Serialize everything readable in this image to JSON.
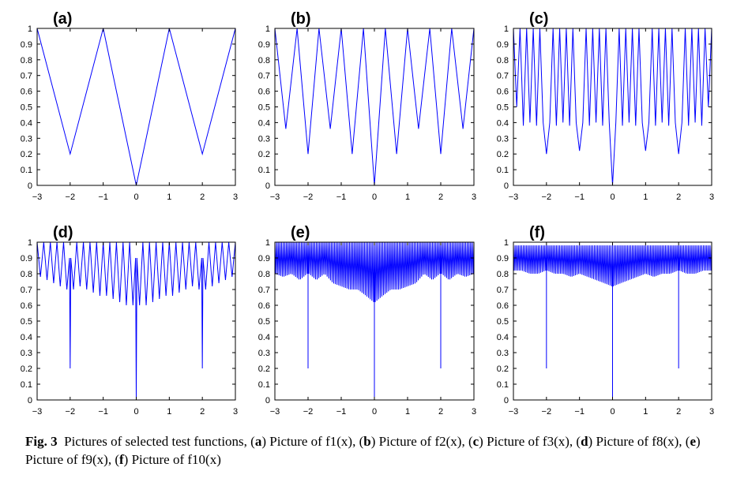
{
  "chart_data": [
    {
      "type": "line",
      "panel_label": "(a)",
      "func": "f1",
      "x": [
        -3,
        -2,
        -1,
        0,
        1,
        2,
        3
      ],
      "y": [
        1,
        0.2,
        1,
        0,
        1,
        0.2,
        1
      ],
      "xlim": [
        -3,
        3
      ],
      "ylim": [
        0,
        1
      ],
      "xticks": [
        "-3",
        "-2",
        "-1",
        "0",
        "1",
        "2",
        "3"
      ],
      "yticks": [
        "0",
        "0.1",
        "0.2",
        "0.3",
        "0.4",
        "0.5",
        "0.6",
        "0.7",
        "0.8",
        "0.9",
        "1"
      ],
      "color": "#0000ff",
      "grid": false
    },
    {
      "type": "line",
      "panel_label": "(b)",
      "func": "f2",
      "x": [
        -3,
        -2.67,
        -2.33,
        -2,
        -1.67,
        -1.33,
        -1,
        -0.67,
        -0.33,
        0,
        0.33,
        0.67,
        1,
        1.33,
        1.67,
        2,
        2.33,
        2.67,
        3
      ],
      "y": [
        1,
        0.36,
        1,
        0.2,
        1,
        0.36,
        1,
        0.2,
        1,
        0,
        1,
        0.2,
        1,
        0.36,
        1,
        0.2,
        1,
        0.36,
        1
      ],
      "xlim": [
        -3,
        3
      ],
      "ylim": [
        0,
        1
      ],
      "xticks": [
        "-3",
        "-2",
        "-1",
        "0",
        "1",
        "2",
        "3"
      ],
      "yticks": [
        "0",
        "0.1",
        "0.2",
        "0.3",
        "0.4",
        "0.5",
        "0.6",
        "0.7",
        "0.8",
        "0.9",
        "1"
      ],
      "color": "#0000ff",
      "grid": false
    },
    {
      "type": "line",
      "panel_label": "(c)",
      "func": "f3",
      "x": [
        -3,
        -2.9,
        -2.8,
        -2.7,
        -2.6,
        -2.5,
        -2.4,
        -2.3,
        -2.2,
        -2.1,
        -2,
        -1.9,
        -1.8,
        -1.7,
        -1.6,
        -1.5,
        -1.4,
        -1.3,
        -1.2,
        -1.1,
        -1,
        -0.9,
        -0.8,
        -0.7,
        -0.6,
        -0.5,
        -0.4,
        -0.3,
        -0.2,
        -0.1,
        0,
        0.1,
        0.2,
        0.3,
        0.4,
        0.5,
        0.6,
        0.7,
        0.8,
        0.9,
        1,
        1.1,
        1.2,
        1.3,
        1.4,
        1.5,
        1.6,
        1.7,
        1.8,
        1.9,
        2,
        2.1,
        2.2,
        2.3,
        2.4,
        2.5,
        2.6,
        2.7,
        2.8,
        2.9,
        3
      ],
      "y": [
        1,
        0.5,
        1,
        0.38,
        1,
        0.4,
        1,
        0.38,
        1,
        0.4,
        0.2,
        0.4,
        1,
        0.38,
        1,
        0.4,
        1,
        0.38,
        1,
        0.4,
        0.22,
        0.4,
        1,
        0.38,
        1,
        0.4,
        1,
        0.38,
        1,
        0.4,
        0,
        0.4,
        1,
        0.38,
        1,
        0.4,
        1,
        0.38,
        1,
        0.4,
        0.22,
        0.4,
        1,
        0.38,
        1,
        0.4,
        1,
        0.38,
        1,
        0.4,
        0.2,
        0.4,
        1,
        0.38,
        1,
        0.4,
        1,
        0.38,
        1,
        0.5,
        1
      ],
      "xlim": [
        -3,
        3
      ],
      "ylim": [
        0,
        1
      ],
      "xticks": [
        "-3",
        "-2",
        "-1",
        "0",
        "1",
        "2",
        "3"
      ],
      "yticks": [
        "0",
        "0.1",
        "0.2",
        "0.3",
        "0.4",
        "0.5",
        "0.6",
        "0.7",
        "0.8",
        "0.9",
        "1"
      ],
      "color": "#0000ff",
      "grid": false
    },
    {
      "type": "line",
      "panel_label": "(d)",
      "func": "f8",
      "x": [
        -3,
        -2.9,
        -2.8,
        -2.7,
        -2.6,
        -2.5,
        -2.4,
        -2.3,
        -2.2,
        -2.1,
        -2.02,
        -2,
        -1.98,
        -1.9,
        -1.8,
        -1.7,
        -1.6,
        -1.5,
        -1.4,
        -1.3,
        -1.2,
        -1.1,
        -1,
        -0.9,
        -0.8,
        -0.7,
        -0.6,
        -0.5,
        -0.4,
        -0.3,
        -0.2,
        -0.1,
        -0.02,
        0,
        0.02,
        0.1,
        0.2,
        0.3,
        0.4,
        0.5,
        0.6,
        0.7,
        0.8,
        0.9,
        1,
        1.1,
        1.2,
        1.3,
        1.4,
        1.5,
        1.6,
        1.7,
        1.8,
        1.9,
        1.98,
        2,
        2.02,
        2.1,
        2.2,
        2.3,
        2.4,
        2.5,
        2.6,
        2.7,
        2.8,
        2.9,
        3
      ],
      "y": [
        1,
        0.78,
        1,
        0.76,
        1,
        0.74,
        1,
        0.72,
        1,
        0.7,
        0.9,
        0.2,
        0.9,
        0.7,
        1,
        0.72,
        1,
        0.7,
        1,
        0.68,
        1,
        0.66,
        1,
        0.66,
        1,
        0.64,
        1,
        0.62,
        1,
        0.6,
        1,
        0.6,
        0.9,
        0,
        0.9,
        0.6,
        1,
        0.6,
        1,
        0.62,
        1,
        0.64,
        1,
        0.66,
        1,
        0.66,
        1,
        0.68,
        1,
        0.7,
        1,
        0.72,
        1,
        0.7,
        0.9,
        0.2,
        0.9,
        0.7,
        1,
        0.72,
        1,
        0.74,
        1,
        0.76,
        1,
        0.78,
        1
      ],
      "xlim": [
        -3,
        3
      ],
      "ylim": [
        0,
        1
      ],
      "xticks": [
        "-3",
        "-2",
        "-1",
        "0",
        "1",
        "2",
        "3"
      ],
      "yticks": [
        "0",
        "0.1",
        "0.2",
        "0.3",
        "0.4",
        "0.5",
        "0.6",
        "0.7",
        "0.8",
        "0.9",
        "1"
      ],
      "color": "#0000ff",
      "grid": false
    },
    {
      "type": "line",
      "panel_label": "(e)",
      "func": "f9",
      "x": [
        -3,
        -2.75,
        -2.5,
        -2.25,
        -2.02,
        -2,
        -1.98,
        -1.75,
        -1.5,
        -1.25,
        -1,
        -0.75,
        -0.5,
        -0.25,
        -0.02,
        0,
        0.02,
        0.25,
        0.5,
        0.75,
        1,
        1.25,
        1.5,
        1.75,
        1.98,
        2,
        2.02,
        2.25,
        2.5,
        2.75,
        3
      ],
      "y": [
        0.8,
        0.78,
        0.8,
        0.76,
        0.8,
        0.2,
        0.8,
        0.76,
        0.8,
        0.74,
        0.72,
        0.7,
        0.7,
        0.66,
        0.62,
        0,
        0.62,
        0.66,
        0.7,
        0.7,
        0.72,
        0.74,
        0.8,
        0.76,
        0.8,
        0.2,
        0.8,
        0.76,
        0.8,
        0.78,
        0.8
      ],
      "y_upper": [
        1,
        1,
        1,
        1,
        1,
        1,
        1,
        1,
        1,
        1,
        1,
        1,
        1,
        1,
        1,
        1,
        1,
        1,
        1,
        1,
        1,
        1,
        1,
        1,
        1,
        1,
        1,
        1,
        1,
        1,
        1
      ],
      "xlim": [
        -3,
        3
      ],
      "ylim": [
        0,
        1
      ],
      "xticks": [
        "-3",
        "-2",
        "-1",
        "0",
        "1",
        "2",
        "3"
      ],
      "yticks": [
        "0",
        "0.1",
        "0.2",
        "0.3",
        "0.4",
        "0.5",
        "0.6",
        "0.7",
        "0.8",
        "0.9",
        "1"
      ],
      "color": "#0000ff",
      "grid": false
    },
    {
      "type": "line",
      "panel_label": "(f)",
      "func": "f10",
      "x": [
        -3,
        -2.75,
        -2.5,
        -2.25,
        -2.02,
        -2,
        -1.98,
        -1.75,
        -1.5,
        -1.25,
        -1,
        -0.75,
        -0.5,
        -0.25,
        -0.02,
        0,
        0.02,
        0.25,
        0.5,
        0.75,
        1,
        1.25,
        1.5,
        1.75,
        1.98,
        2,
        2.02,
        2.25,
        2.5,
        2.75,
        3
      ],
      "y": [
        0.82,
        0.82,
        0.8,
        0.8,
        0.82,
        0.2,
        0.82,
        0.8,
        0.8,
        0.78,
        0.8,
        0.78,
        0.76,
        0.74,
        0.72,
        0,
        0.72,
        0.74,
        0.76,
        0.78,
        0.8,
        0.78,
        0.8,
        0.8,
        0.82,
        0.2,
        0.82,
        0.8,
        0.8,
        0.82,
        0.82
      ],
      "y_upper": [
        0.98,
        0.98,
        0.98,
        0.98,
        0.98,
        0.98,
        0.98,
        0.98,
        0.98,
        0.98,
        0.98,
        0.98,
        0.98,
        0.98,
        0.98,
        0.98,
        0.98,
        0.98,
        0.98,
        0.98,
        0.98,
        0.98,
        0.98,
        0.98,
        0.98,
        0.98,
        0.98,
        0.98,
        0.98,
        0.98,
        0.98
      ],
      "xlim": [
        -3,
        3
      ],
      "ylim": [
        0,
        1
      ],
      "xticks": [
        "-3",
        "-2",
        "-1",
        "0",
        "1",
        "2",
        "3"
      ],
      "yticks": [
        "0",
        "0.1",
        "0.2",
        "0.3",
        "0.4",
        "0.5",
        "0.6",
        "0.7",
        "0.8",
        "0.9",
        "1"
      ],
      "color": "#0000ff",
      "grid": false
    }
  ],
  "caption": {
    "fig_label": "Fig. 3",
    "intro": "Pictures of selected test functions,",
    "items": [
      {
        "letter": "a",
        "text": "Picture of f1(x)"
      },
      {
        "letter": "b",
        "text": "Picture of f2(x)"
      },
      {
        "letter": "c",
        "text": "Picture of f3(x)"
      },
      {
        "letter": "d",
        "text": "Picture of f8(x)"
      },
      {
        "letter": "e",
        "text": "Picture of f9(x)"
      },
      {
        "letter": "f",
        "text": "Picture of f10(x)"
      }
    ]
  }
}
